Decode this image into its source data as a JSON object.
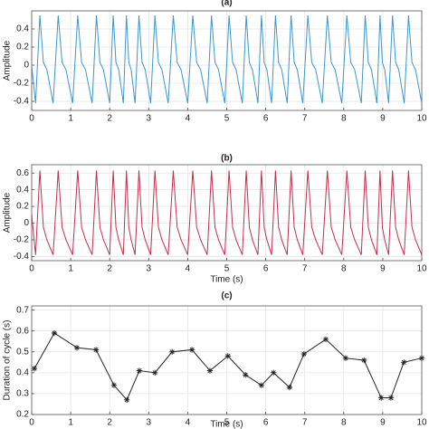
{
  "chart_data": [
    {
      "type": "line",
      "title": "(a)",
      "ylabel": "Amplitude",
      "color": "#3b97cc",
      "grid": true,
      "xlim": [
        0,
        10
      ],
      "xticks": [
        0,
        1,
        2,
        3,
        4,
        5,
        6,
        7,
        8,
        9,
        10
      ],
      "ylim": [
        -0.5,
        0.6
      ],
      "yticks": [
        -0.4,
        -0.2,
        0,
        0.2,
        0.4
      ],
      "x": [
        0,
        0.1,
        0.21,
        0.3,
        0.39,
        0.55,
        0.68,
        0.78,
        0.88,
        1.05,
        1.18,
        1.28,
        1.38,
        1.55,
        1.66,
        1.75,
        1.84,
        2.0,
        2.09,
        2.16,
        2.23,
        2.35,
        2.43,
        2.49,
        2.55,
        2.65,
        2.75,
        2.83,
        2.91,
        3.05,
        3.16,
        3.25,
        3.34,
        3.5,
        3.63,
        3.73,
        3.83,
        4.0,
        4.13,
        4.23,
        4.33,
        4.5,
        4.61,
        4.7,
        4.79,
        4.95,
        5.06,
        5.15,
        5.24,
        5.4,
        5.5,
        5.58,
        5.66,
        5.8,
        5.89,
        5.96,
        6.03,
        6.15,
        6.25,
        6.33,
        6.41,
        6.55,
        6.65,
        6.73,
        6.81,
        6.95,
        7.08,
        7.18,
        7.28,
        7.45,
        7.58,
        7.68,
        7.78,
        7.95,
        8.08,
        8.18,
        8.28,
        8.45,
        8.55,
        8.63,
        8.71,
        8.85,
        8.93,
        8.99,
        9.05,
        9.15,
        9.25,
        9.33,
        9.41,
        9.55,
        9.66,
        9.75,
        9.84,
        10.0
      ],
      "values": [
        0,
        -0.42,
        0.55,
        0.03,
        -0.05,
        -0.42,
        0.55,
        0.03,
        -0.05,
        -0.42,
        0.55,
        0.03,
        -0.05,
        -0.42,
        0.55,
        0.03,
        -0.05,
        -0.42,
        0.55,
        0.03,
        -0.05,
        -0.42,
        0.55,
        0.03,
        -0.05,
        -0.42,
        0.55,
        0.03,
        -0.05,
        -0.42,
        0.55,
        0.03,
        -0.05,
        -0.42,
        0.55,
        0.03,
        -0.05,
        -0.42,
        0.55,
        0.03,
        -0.05,
        -0.42,
        0.55,
        0.03,
        -0.05,
        -0.42,
        0.55,
        0.03,
        -0.05,
        -0.42,
        0.55,
        0.03,
        -0.05,
        -0.42,
        0.55,
        0.03,
        -0.05,
        -0.42,
        0.55,
        0.03,
        -0.05,
        -0.42,
        0.55,
        0.03,
        -0.05,
        -0.42,
        0.55,
        0.03,
        -0.05,
        -0.42,
        0.55,
        0.03,
        -0.05,
        -0.42,
        0.55,
        0.03,
        -0.05,
        -0.42,
        0.55,
        0.03,
        -0.05,
        -0.42,
        0.55,
        0.03,
        -0.05,
        -0.42,
        0.55,
        0.03,
        -0.05,
        -0.42,
        0.55,
        0.03,
        -0.05,
        -0.42
      ]
    },
    {
      "type": "line",
      "title": "(b)",
      "xlabel": "Time (s)",
      "ylabel": "Amplitude",
      "color": "#c0304f",
      "grid": true,
      "xlim": [
        0,
        10
      ],
      "xticks": [
        0,
        1,
        2,
        3,
        4,
        5,
        6,
        7,
        8,
        9,
        10
      ],
      "ylim": [
        -0.45,
        0.7
      ],
      "yticks": [
        -0.4,
        -0.2,
        0,
        0.2,
        0.4,
        0.6
      ],
      "x": [
        0,
        0.1,
        0.21,
        0.3,
        0.39,
        0.55,
        0.68,
        0.78,
        0.88,
        1.05,
        1.18,
        1.28,
        1.38,
        1.55,
        1.66,
        1.75,
        1.84,
        2.0,
        2.09,
        2.16,
        2.23,
        2.35,
        2.43,
        2.49,
        2.55,
        2.65,
        2.75,
        2.83,
        2.91,
        3.05,
        3.16,
        3.25,
        3.34,
        3.5,
        3.63,
        3.73,
        3.83,
        4.0,
        4.13,
        4.23,
        4.33,
        4.5,
        4.61,
        4.7,
        4.79,
        4.95,
        5.06,
        5.15,
        5.24,
        5.4,
        5.5,
        5.58,
        5.66,
        5.8,
        5.89,
        5.96,
        6.03,
        6.15,
        6.25,
        6.33,
        6.41,
        6.55,
        6.65,
        6.73,
        6.81,
        6.95,
        7.08,
        7.18,
        7.28,
        7.45,
        7.58,
        7.68,
        7.78,
        7.95,
        8.08,
        8.18,
        8.28,
        8.45,
        8.55,
        8.63,
        8.71,
        8.85,
        8.93,
        8.99,
        9.05,
        9.15,
        9.25,
        9.33,
        9.41,
        9.55,
        9.66,
        9.75,
        9.84,
        10.0
      ],
      "values": [
        0.1,
        -0.38,
        0.63,
        -0.05,
        -0.2,
        -0.38,
        0.63,
        -0.05,
        -0.2,
        -0.38,
        0.63,
        -0.05,
        -0.2,
        -0.38,
        0.63,
        -0.05,
        -0.2,
        -0.38,
        0.63,
        -0.05,
        -0.2,
        -0.38,
        0.63,
        -0.05,
        -0.2,
        -0.38,
        0.63,
        -0.05,
        -0.2,
        -0.38,
        0.63,
        -0.05,
        -0.2,
        -0.38,
        0.63,
        -0.05,
        -0.2,
        -0.38,
        0.63,
        -0.05,
        -0.2,
        -0.38,
        0.63,
        -0.05,
        -0.2,
        -0.38,
        0.63,
        -0.05,
        -0.2,
        -0.38,
        0.63,
        -0.05,
        -0.2,
        -0.38,
        0.63,
        -0.05,
        -0.2,
        -0.38,
        0.63,
        -0.05,
        -0.2,
        -0.38,
        0.63,
        -0.05,
        -0.2,
        -0.38,
        0.63,
        -0.05,
        -0.2,
        -0.38,
        0.63,
        -0.05,
        -0.2,
        -0.38,
        0.63,
        -0.05,
        -0.2,
        -0.38,
        0.63,
        -0.05,
        -0.2,
        -0.38,
        0.63,
        -0.05,
        -0.2,
        -0.38,
        0.63,
        -0.05,
        -0.2,
        -0.38,
        0.63,
        -0.05,
        -0.2,
        -0.38
      ]
    },
    {
      "type": "line",
      "title": "(c)",
      "xlabel": "Time (s)",
      "ylabel": "Duration of cycle (s)",
      "color": "#222222",
      "marker": "asterisk",
      "grid": true,
      "xlim": [
        0,
        10
      ],
      "xticks": [
        0,
        1,
        2,
        3,
        4,
        5,
        6,
        7,
        8,
        9,
        10
      ],
      "ylim": [
        0.2,
        0.72
      ],
      "yticks": [
        0.2,
        0.3,
        0.4,
        0.5,
        0.6,
        0.7
      ],
      "x": [
        0.07,
        0.58,
        1.16,
        1.65,
        2.11,
        2.44,
        2.76,
        3.16,
        3.6,
        4.11,
        4.57,
        5.03,
        5.48,
        5.89,
        6.2,
        6.61,
        6.98,
        7.54,
        8.05,
        8.52,
        8.96,
        9.21,
        9.54,
        10.0
      ],
      "values": [
        0.42,
        0.59,
        0.52,
        0.51,
        0.34,
        0.27,
        0.41,
        0.4,
        0.5,
        0.51,
        0.41,
        0.48,
        0.39,
        0.34,
        0.4,
        0.33,
        0.49,
        0.56,
        0.47,
        0.46,
        0.28,
        0.28,
        0.45,
        0.47
      ]
    }
  ]
}
